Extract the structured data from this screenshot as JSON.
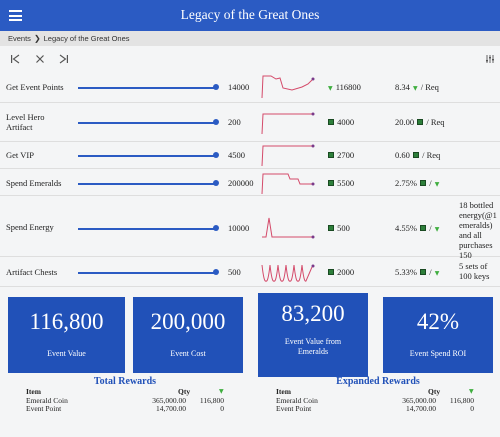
{
  "header": {
    "title": "Legacy of the Great Ones",
    "menu_icon": "hamburger-menu-icon"
  },
  "breadcrumb": {
    "items": [
      "Events",
      "Legacy of the Great Ones"
    ]
  },
  "toolbar": {
    "icons": [
      "skip-back-icon",
      "close-icon",
      "skip-forward-icon",
      "filter-settings-icon"
    ]
  },
  "rows": [
    {
      "label": "Get Event Points",
      "value": "14000",
      "slider_level": 1.0,
      "points": "116800",
      "ratio": "8.34",
      "ratio_unit": "/ Req",
      "note": ""
    },
    {
      "label": "Level Hero Artifact",
      "value": "200",
      "slider_level": 1.0,
      "points": "4000",
      "ratio": "20.00",
      "ratio_unit": "/ Req",
      "note": ""
    },
    {
      "label": "Get VIP",
      "value": "4500",
      "slider_level": 1.0,
      "points": "2700",
      "ratio": "0.60",
      "ratio_unit": "/ Req",
      "note": ""
    },
    {
      "label": "Spend Emeralds",
      "value": "200000",
      "slider_level": 1.0,
      "points": "5500",
      "ratio": "2.75%",
      "ratio_unit": "/",
      "note": ""
    },
    {
      "label": "Spend Energy",
      "value": "10000",
      "slider_level": 1.0,
      "points": "500",
      "ratio": "4.55%",
      "ratio_unit": "/",
      "note": "18 bottled energy(@1 emeralds) and all purchases 150"
    },
    {
      "label": "Artifact Chests",
      "value": "500",
      "slider_level": 1.0,
      "points": "2000",
      "ratio": "5.33%",
      "ratio_unit": "/",
      "note": "5 sets of 100 keys"
    }
  ],
  "stats": [
    {
      "value": "116,800",
      "caption": "Event Value"
    },
    {
      "value": "200,000",
      "caption": "Event Cost"
    },
    {
      "value": "83,200",
      "caption": "Event Value from Emeralds"
    },
    {
      "value": "42%",
      "caption": "Event Spend ROI"
    }
  ],
  "total_rewards": {
    "title": "Total Rewards",
    "headers": {
      "item": "Item",
      "qty": "Qty"
    },
    "rows": [
      {
        "item": "Emerald Coin",
        "qty": "365,000.00",
        "value": "116,800"
      },
      {
        "item": "Event Point",
        "qty": "14,700.00",
        "value": "0"
      }
    ]
  },
  "expanded_rewards": {
    "title": "Expanded Rewards",
    "headers": {
      "item": "Item",
      "qty": "Qty"
    },
    "rows": [
      {
        "item": "Emerald Coin",
        "qty": "365,000.00",
        "value": "116,800"
      },
      {
        "item": "Event Point",
        "qty": "14,700.00",
        "value": "0"
      }
    ]
  },
  "colors": {
    "primary": "#2b5bc3",
    "card": "#2151b8",
    "sparkline": "#d44a6a",
    "emerald": "#3fae3f"
  }
}
